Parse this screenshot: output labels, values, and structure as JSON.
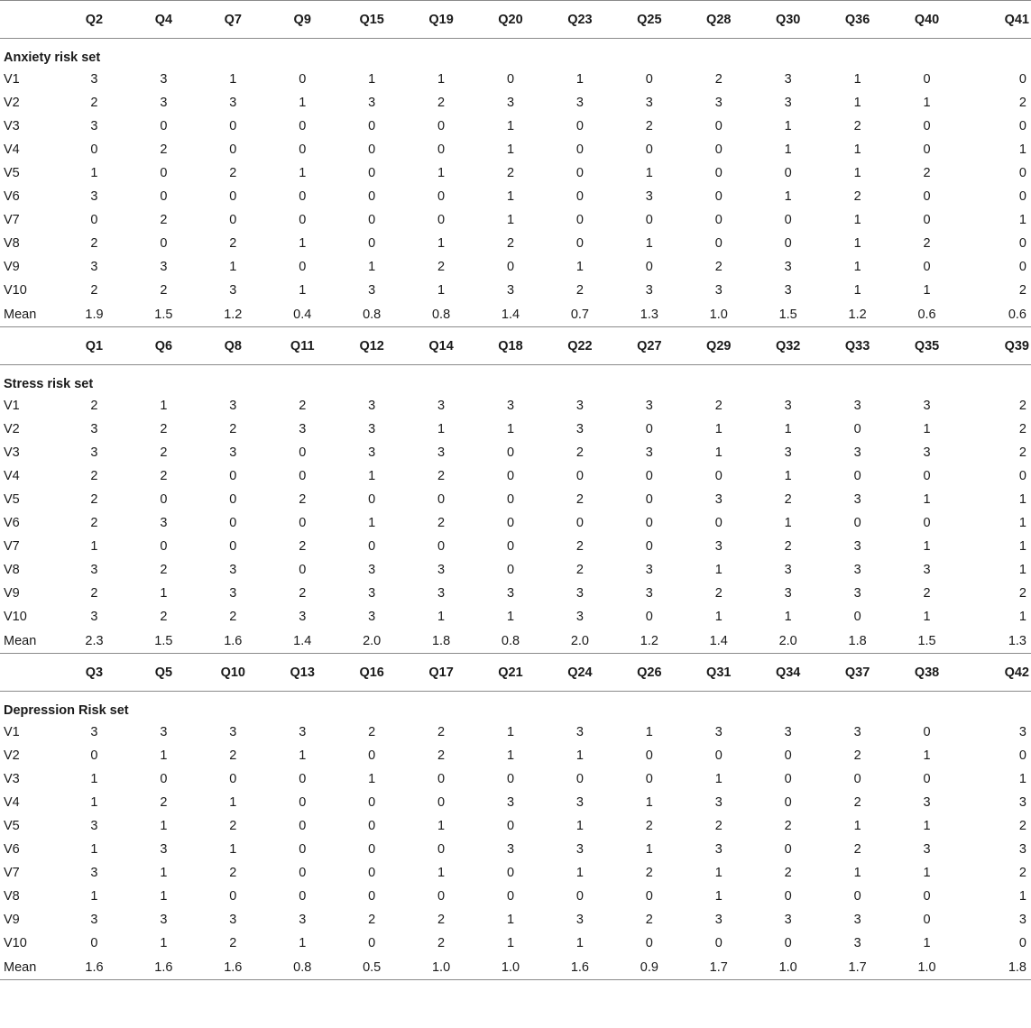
{
  "table": {
    "sections": [
      {
        "questions": [
          "Q2",
          "Q4",
          "Q7",
          "Q9",
          "Q15",
          "Q19",
          "Q20",
          "Q23",
          "Q25",
          "Q28",
          "Q30",
          "Q36",
          "Q40",
          "Q41"
        ],
        "title": "Anxiety risk set",
        "rows": [
          {
            "label": "V1",
            "values": [
              "3",
              "3",
              "1",
              "0",
              "1",
              "1",
              "0",
              "1",
              "0",
              "2",
              "3",
              "1",
              "0",
              "0"
            ]
          },
          {
            "label": "V2",
            "values": [
              "2",
              "3",
              "3",
              "1",
              "3",
              "2",
              "3",
              "3",
              "3",
              "3",
              "3",
              "1",
              "1",
              "2"
            ]
          },
          {
            "label": "V3",
            "values": [
              "3",
              "0",
              "0",
              "0",
              "0",
              "0",
              "1",
              "0",
              "2",
              "0",
              "1",
              "2",
              "0",
              "0"
            ]
          },
          {
            "label": "V4",
            "values": [
              "0",
              "2",
              "0",
              "0",
              "0",
              "0",
              "1",
              "0",
              "0",
              "0",
              "1",
              "1",
              "0",
              "1"
            ]
          },
          {
            "label": "V5",
            "values": [
              "1",
              "0",
              "2",
              "1",
              "0",
              "1",
              "2",
              "0",
              "1",
              "0",
              "0",
              "1",
              "2",
              "0"
            ]
          },
          {
            "label": "V6",
            "values": [
              "3",
              "0",
              "0",
              "0",
              "0",
              "0",
              "1",
              "0",
              "3",
              "0",
              "1",
              "2",
              "0",
              "0"
            ]
          },
          {
            "label": "V7",
            "values": [
              "0",
              "2",
              "0",
              "0",
              "0",
              "0",
              "1",
              "0",
              "0",
              "0",
              "0",
              "1",
              "0",
              "1"
            ]
          },
          {
            "label": "V8",
            "values": [
              "2",
              "0",
              "2",
              "1",
              "0",
              "1",
              "2",
              "0",
              "1",
              "0",
              "0",
              "1",
              "2",
              "0"
            ]
          },
          {
            "label": "V9",
            "values": [
              "3",
              "3",
              "1",
              "0",
              "1",
              "2",
              "0",
              "1",
              "0",
              "2",
              "3",
              "1",
              "0",
              "0"
            ]
          },
          {
            "label": "V10",
            "values": [
              "2",
              "2",
              "3",
              "1",
              "3",
              "1",
              "3",
              "2",
              "3",
              "3",
              "3",
              "1",
              "1",
              "2"
            ]
          },
          {
            "label": "Mean",
            "values": [
              "1.9",
              "1.5",
              "1.2",
              "0.4",
              "0.8",
              "0.8",
              "1.4",
              "0.7",
              "1.3",
              "1.0",
              "1.5",
              "1.2",
              "0.6",
              "0.6"
            ]
          }
        ]
      },
      {
        "questions": [
          "Q1",
          "Q6",
          "Q8",
          "Q11",
          "Q12",
          "Q14",
          "Q18",
          "Q22",
          "Q27",
          "Q29",
          "Q32",
          "Q33",
          "Q35",
          "Q39"
        ],
        "title": "Stress risk set",
        "rows": [
          {
            "label": "V1",
            "values": [
              "2",
              "1",
              "3",
              "2",
              "3",
              "3",
              "3",
              "3",
              "3",
              "2",
              "3",
              "3",
              "3",
              "2"
            ]
          },
          {
            "label": "V2",
            "values": [
              "3",
              "2",
              "2",
              "3",
              "3",
              "1",
              "1",
              "3",
              "0",
              "1",
              "1",
              "0",
              "1",
              "2"
            ]
          },
          {
            "label": "V3",
            "values": [
              "3",
              "2",
              "3",
              "0",
              "3",
              "3",
              "0",
              "2",
              "3",
              "1",
              "3",
              "3",
              "3",
              "2"
            ]
          },
          {
            "label": "V4",
            "values": [
              "2",
              "2",
              "0",
              "0",
              "1",
              "2",
              "0",
              "0",
              "0",
              "0",
              "1",
              "0",
              "0",
              "0"
            ]
          },
          {
            "label": "V5",
            "values": [
              "2",
              "0",
              "0",
              "2",
              "0",
              "0",
              "0",
              "2",
              "0",
              "3",
              "2",
              "3",
              "1",
              "1"
            ]
          },
          {
            "label": "V6",
            "values": [
              "2",
              "3",
              "0",
              "0",
              "1",
              "2",
              "0",
              "0",
              "0",
              "0",
              "1",
              "0",
              "0",
              "1"
            ]
          },
          {
            "label": "V7",
            "values": [
              "1",
              "0",
              "0",
              "2",
              "0",
              "0",
              "0",
              "2",
              "0",
              "3",
              "2",
              "3",
              "1",
              "1"
            ]
          },
          {
            "label": "V8",
            "values": [
              "3",
              "2",
              "3",
              "0",
              "3",
              "3",
              "0",
              "2",
              "3",
              "1",
              "3",
              "3",
              "3",
              "1"
            ]
          },
          {
            "label": "V9",
            "values": [
              "2",
              "1",
              "3",
              "2",
              "3",
              "3",
              "3",
              "3",
              "3",
              "2",
              "3",
              "3",
              "2",
              "2"
            ]
          },
          {
            "label": "V10",
            "values": [
              "3",
              "2",
              "2",
              "3",
              "3",
              "1",
              "1",
              "3",
              "0",
              "1",
              "1",
              "0",
              "1",
              "1"
            ]
          },
          {
            "label": "Mean",
            "values": [
              "2.3",
              "1.5",
              "1.6",
              "1.4",
              "2.0",
              "1.8",
              "0.8",
              "2.0",
              "1.2",
              "1.4",
              "2.0",
              "1.8",
              "1.5",
              "1.3"
            ]
          }
        ]
      },
      {
        "questions": [
          "Q3",
          "Q5",
          "Q10",
          "Q13",
          "Q16",
          "Q17",
          "Q21",
          "Q24",
          "Q26",
          "Q31",
          "Q34",
          "Q37",
          "Q38",
          "Q42"
        ],
        "title": "Depression Risk set",
        "rows": [
          {
            "label": "V1",
            "values": [
              "3",
              "3",
              "3",
              "3",
              "2",
              "2",
              "1",
              "3",
              "1",
              "3",
              "3",
              "3",
              "0",
              "3"
            ]
          },
          {
            "label": "V2",
            "values": [
              "0",
              "1",
              "2",
              "1",
              "0",
              "2",
              "1",
              "1",
              "0",
              "0",
              "0",
              "2",
              "1",
              "0"
            ]
          },
          {
            "label": "V3",
            "values": [
              "1",
              "0",
              "0",
              "0",
              "1",
              "0",
              "0",
              "0",
              "0",
              "1",
              "0",
              "0",
              "0",
              "1"
            ]
          },
          {
            "label": "V4",
            "values": [
              "1",
              "2",
              "1",
              "0",
              "0",
              "0",
              "3",
              "3",
              "1",
              "3",
              "0",
              "2",
              "3",
              "3"
            ]
          },
          {
            "label": "V5",
            "values": [
              "3",
              "1",
              "2",
              "0",
              "0",
              "1",
              "0",
              "1",
              "2",
              "2",
              "2",
              "1",
              "1",
              "2"
            ]
          },
          {
            "label": "V6",
            "values": [
              "1",
              "3",
              "1",
              "0",
              "0",
              "0",
              "3",
              "3",
              "1",
              "3",
              "0",
              "2",
              "3",
              "3"
            ]
          },
          {
            "label": "V7",
            "values": [
              "3",
              "1",
              "2",
              "0",
              "0",
              "1",
              "0",
              "1",
              "2",
              "1",
              "2",
              "1",
              "1",
              "2"
            ]
          },
          {
            "label": "V8",
            "values": [
              "1",
              "1",
              "0",
              "0",
              "0",
              "0",
              "0",
              "0",
              "0",
              "1",
              "0",
              "0",
              "0",
              "1"
            ]
          },
          {
            "label": "V9",
            "values": [
              "3",
              "3",
              "3",
              "3",
              "2",
              "2",
              "1",
              "3",
              "2",
              "3",
              "3",
              "3",
              "0",
              "3"
            ]
          },
          {
            "label": "V10",
            "values": [
              "0",
              "1",
              "2",
              "1",
              "0",
              "2",
              "1",
              "1",
              "0",
              "0",
              "0",
              "3",
              "1",
              "0"
            ]
          },
          {
            "label": "Mean",
            "values": [
              "1.6",
              "1.6",
              "1.6",
              "0.8",
              "0.5",
              "1.0",
              "1.0",
              "1.6",
              "0.9",
              "1.7",
              "1.0",
              "1.7",
              "1.0",
              "1.8"
            ]
          }
        ]
      }
    ]
  }
}
